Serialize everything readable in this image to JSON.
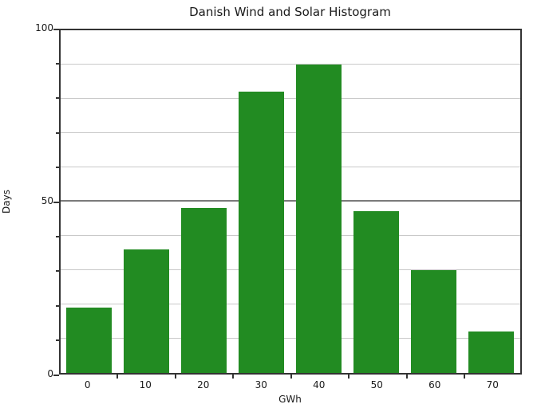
{
  "chart_data": {
    "type": "bar",
    "title": "Danish Wind and Solar Histogram",
    "xlabel": "GWh",
    "ylabel": "Days",
    "categories": [
      "0",
      "10",
      "20",
      "30",
      "40",
      "50",
      "60",
      "70"
    ],
    "values": [
      19,
      36,
      48,
      82,
      90,
      47,
      30,
      12
    ],
    "ylim": [
      0,
      100
    ],
    "yticks_labeled": [
      0,
      50,
      100
    ],
    "ygrid_minor_step": 10,
    "ygrid_major": [
      50
    ],
    "grid": true,
    "legend": "none",
    "bar_color": "#228B22"
  },
  "colors": {
    "bar": "#228B22",
    "spine": "#333333",
    "grid_minor": "#c9c9c9",
    "grid_major": "#7a7a7a",
    "text": "#1a1a1a",
    "background": "#ffffff"
  }
}
